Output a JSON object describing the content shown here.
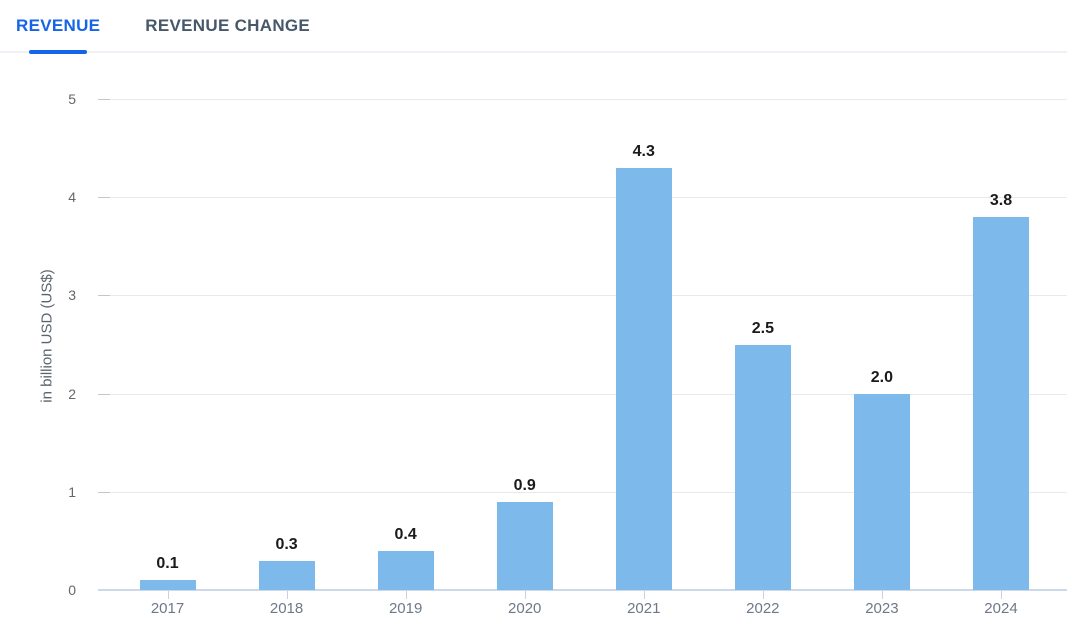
{
  "tabs": [
    {
      "label": "REVENUE",
      "active": true
    },
    {
      "label": "REVENUE CHANGE",
      "active": false
    }
  ],
  "chart_data": {
    "type": "bar",
    "categories": [
      "2017",
      "2018",
      "2019",
      "2020",
      "2021",
      "2022",
      "2023",
      "2024"
    ],
    "values": [
      0.1,
      0.3,
      0.4,
      0.9,
      4.3,
      2.5,
      2.0,
      3.8
    ],
    "bar_labels": [
      "0.1",
      "0.3",
      "0.4",
      "0.9",
      "4.3",
      "2.5",
      "2.0",
      "3.8"
    ],
    "xlabel": "",
    "ylabel": "in billion USD (US$)",
    "ylim": [
      0,
      5
    ],
    "yticks": [
      0,
      1,
      2,
      3,
      4,
      5
    ],
    "grid": true,
    "legend_position": "none",
    "bar_color": "#7db9ea"
  },
  "colors": {
    "active_tab": "#1565e8",
    "inactive_tab": "#47586b",
    "bar_fill": "#7db9ea",
    "gridline": "#e9e9e9",
    "baseline": "#ccd9ea",
    "axis_text": "#666666",
    "value_label": "#1a1a1a"
  }
}
